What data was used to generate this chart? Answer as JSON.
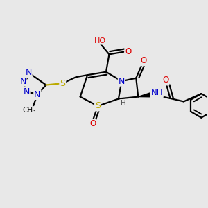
{
  "bg_color": "#e8e8e8",
  "atom_colors": {
    "C": "#000000",
    "N": "#0000cc",
    "O": "#dd0000",
    "S": "#bbaa00",
    "H": "#555555"
  },
  "bond_color": "#000000",
  "bond_width": 1.6,
  "figsize": [
    3.0,
    3.0
  ],
  "dpi": 100,
  "xlim": [
    0,
    10
  ],
  "ylim": [
    0,
    10
  ]
}
